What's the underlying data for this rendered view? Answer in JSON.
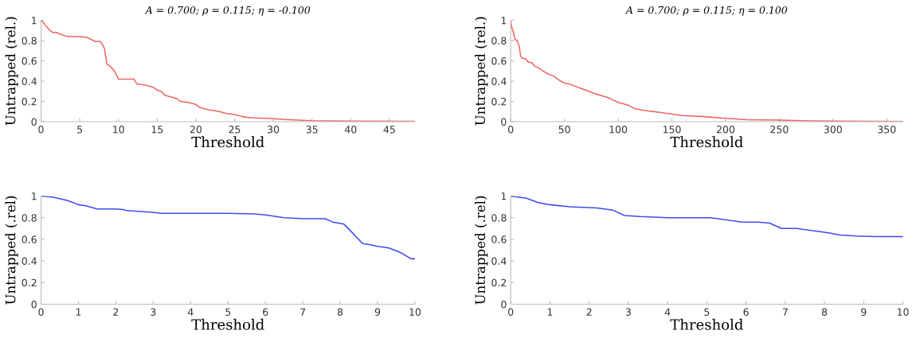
{
  "chart_data": [
    {
      "type": "line",
      "title": "A = 0.700; ρ = 0.115; η = -0.100",
      "xlabel": "Threshold",
      "ylabel": "Untrapped (rel.)",
      "xlim": [
        0,
        48.3
      ],
      "xticks": [
        0,
        5,
        10,
        15,
        20,
        25,
        30,
        35,
        40,
        45
      ],
      "ylim": [
        0,
        1
      ],
      "yticks": [
        0,
        0.2,
        0.4,
        0.6,
        0.8,
        1
      ],
      "grid": false,
      "legend": false,
      "series": [
        {
          "color": "#f06464",
          "x": [
            0,
            0.5,
            1,
            1.5,
            2,
            2.5,
            3,
            3.5,
            5,
            6,
            6.5,
            7,
            7.7,
            8,
            8.2,
            8.5,
            9,
            9.5,
            10,
            12,
            12.3,
            12.5,
            13.5,
            14.5,
            15,
            15.5,
            16,
            17,
            17.5,
            18,
            19,
            20,
            20.5,
            21.5,
            23,
            24,
            25,
            26,
            27,
            30,
            32,
            35,
            40,
            48.3
          ],
          "values": [
            1,
            0.96,
            0.91,
            0.88,
            0.88,
            0.86,
            0.85,
            0.84,
            0.84,
            0.83,
            0.81,
            0.79,
            0.79,
            0.75,
            0.72,
            0.57,
            0.54,
            0.5,
            0.42,
            0.42,
            0.38,
            0.37,
            0.36,
            0.34,
            0.31,
            0.3,
            0.26,
            0.24,
            0.23,
            0.2,
            0.19,
            0.17,
            0.14,
            0.12,
            0.1,
            0.08,
            0.07,
            0.05,
            0.04,
            0.03,
            0.02,
            0.01,
            0.005,
            0.003
          ]
        }
      ]
    },
    {
      "type": "line",
      "title": "A = 0.700; ρ = 0.115; η = 0.100",
      "xlabel": "Threshold",
      "ylabel": "Untrapped (rel.)",
      "xlim": [
        0,
        365
      ],
      "xticks": [
        0,
        50,
        100,
        150,
        200,
        250,
        300,
        350
      ],
      "ylim": [
        0,
        1
      ],
      "yticks": [
        0,
        0.2,
        0.4,
        0.6,
        0.8,
        1
      ],
      "grid": false,
      "legend": false,
      "series": [
        {
          "color": "#f06464",
          "x": [
            0,
            1,
            2,
            3,
            4,
            6,
            8,
            9,
            10,
            14,
            16,
            20,
            22,
            26,
            30,
            35,
            40,
            45,
            50,
            55,
            60,
            65,
            70,
            80,
            90,
            100,
            110,
            115,
            120,
            125,
            140,
            150,
            160,
            180,
            200,
            220,
            250,
            280,
            300,
            365
          ],
          "values": [
            1,
            0.93,
            0.9,
            0.86,
            0.81,
            0.8,
            0.74,
            0.66,
            0.63,
            0.62,
            0.59,
            0.58,
            0.55,
            0.53,
            0.5,
            0.47,
            0.45,
            0.41,
            0.38,
            0.37,
            0.35,
            0.33,
            0.31,
            0.27,
            0.24,
            0.19,
            0.16,
            0.13,
            0.12,
            0.11,
            0.09,
            0.075,
            0.06,
            0.05,
            0.033,
            0.02,
            0.015,
            0.008,
            0.005,
            0.002
          ]
        }
      ]
    },
    {
      "type": "line",
      "xlabel": "Threshold",
      "ylabel": "Untrapped (.rel)",
      "xlim": [
        0,
        10
      ],
      "xticks": [
        0,
        1,
        2,
        3,
        4,
        5,
        6,
        7,
        8,
        9,
        10
      ],
      "ylim": [
        0,
        1
      ],
      "yticks": [
        0,
        0.2,
        0.4,
        0.6,
        0.8,
        1
      ],
      "grid": false,
      "legend": false,
      "series": [
        {
          "color": "#3c4cf0",
          "x": [
            0,
            0.3,
            0.7,
            1,
            1.2,
            1.5,
            2,
            2.2,
            2.3,
            3,
            3.2,
            5,
            5.7,
            6,
            6.5,
            7,
            7.6,
            7.8,
            8.1,
            8.3,
            8.6,
            8.8,
            9,
            9.3,
            9.6,
            9.9,
            10
          ],
          "values": [
            1,
            0.99,
            0.96,
            0.92,
            0.91,
            0.88,
            0.88,
            0.875,
            0.865,
            0.85,
            0.84,
            0.84,
            0.835,
            0.825,
            0.8,
            0.79,
            0.79,
            0.76,
            0.74,
            0.67,
            0.56,
            0.55,
            0.535,
            0.52,
            0.48,
            0.42,
            0.42
          ]
        }
      ]
    },
    {
      "type": "line",
      "xlabel": "Threshold",
      "ylabel": "Untrapped (.rel)",
      "xlim": [
        0,
        10
      ],
      "xticks": [
        0,
        1,
        2,
        3,
        4,
        5,
        6,
        7,
        8,
        9,
        10
      ],
      "ylim": [
        0,
        1
      ],
      "yticks": [
        0,
        0.2,
        0.4,
        0.6,
        0.8,
        1
      ],
      "grid": false,
      "legend": false,
      "series": [
        {
          "color": "#3c4cf0",
          "x": [
            0,
            0.4,
            0.7,
            1,
            1.5,
            2.2,
            2.6,
            2.9,
            3.3,
            4,
            5.1,
            5.5,
            5.9,
            6.3,
            6.6,
            6.9,
            7.3,
            7.7,
            8.1,
            8.4,
            8.8,
            9.3,
            10
          ],
          "values": [
            1,
            0.98,
            0.94,
            0.92,
            0.9,
            0.89,
            0.87,
            0.82,
            0.81,
            0.8,
            0.8,
            0.78,
            0.76,
            0.76,
            0.75,
            0.7,
            0.7,
            0.68,
            0.66,
            0.64,
            0.63,
            0.625,
            0.625
          ]
        }
      ]
    }
  ]
}
